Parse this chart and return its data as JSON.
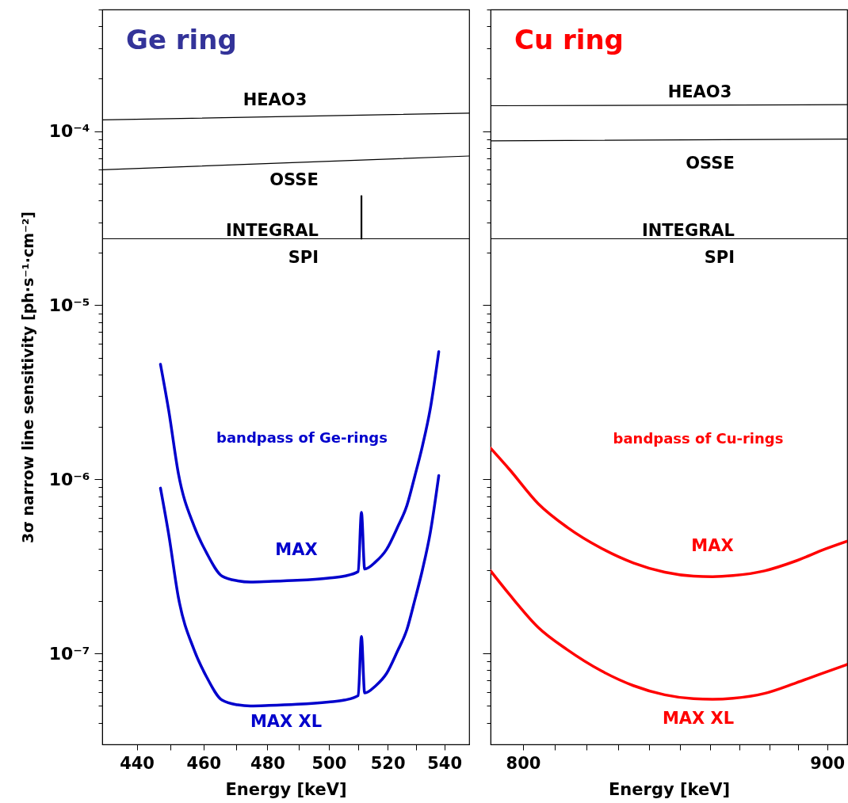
{
  "chart_data": [
    {
      "type": "line",
      "title": "Ge ring",
      "xlabel": "Energy [keV]",
      "ylabel": "3σ narrow line sensitivity [ph·s⁻¹·cm⁻²]",
      "log": "xy",
      "xlim": [
        430,
        549
      ],
      "ylim": [
        3e-08,
        0.0005
      ],
      "xticks": [
        440,
        {
          "value": 450,
          "label": null
        },
        460,
        {
          "value": 470,
          "label": null
        },
        480,
        {
          "value": 490,
          "label": null
        },
        500,
        {
          "value": 510,
          "label": null
        },
        520,
        {
          "value": 530,
          "label": null
        },
        540
      ],
      "yticks": [
        {
          "value": 4e-08,
          "label": null
        },
        {
          "value": 5e-08,
          "label": null
        },
        {
          "value": 6e-08,
          "label": null
        },
        {
          "value": 7e-08,
          "label": null
        },
        {
          "value": 8e-08,
          "label": null
        },
        {
          "value": 9e-08,
          "label": null
        },
        {
          "value": 1e-07,
          "label": "10⁻⁷"
        },
        {
          "value": 2e-07,
          "label": null
        },
        {
          "value": 3e-07,
          "label": null
        },
        {
          "value": 4e-07,
          "label": null
        },
        {
          "value": 5e-07,
          "label": null
        },
        {
          "value": 6e-07,
          "label": null
        },
        {
          "value": 7e-07,
          "label": null
        },
        {
          "value": 8e-07,
          "label": null
        },
        {
          "value": 9e-07,
          "label": null
        },
        {
          "value": 1e-06,
          "label": "10⁻⁶"
        },
        {
          "value": 2e-06,
          "label": null
        },
        {
          "value": 3e-06,
          "label": null
        },
        {
          "value": 4e-06,
          "label": null
        },
        {
          "value": 5e-06,
          "label": null
        },
        {
          "value": 6e-06,
          "label": null
        },
        {
          "value": 7e-06,
          "label": null
        },
        {
          "value": 8e-06,
          "label": null
        },
        {
          "value": 9e-06,
          "label": null
        },
        {
          "value": 1e-05,
          "label": "10⁻⁵"
        },
        {
          "value": 2e-05,
          "label": null
        },
        {
          "value": 3e-05,
          "label": null
        },
        {
          "value": 4e-05,
          "label": null
        },
        {
          "value": 5e-05,
          "label": null
        },
        {
          "value": 6e-05,
          "label": null
        },
        {
          "value": 7e-05,
          "label": null
        },
        {
          "value": 8e-05,
          "label": null
        },
        {
          "value": 9e-05,
          "label": null
        },
        {
          "value": 0.0001,
          "label": "10⁻⁴"
        },
        {
          "value": 0.0002,
          "label": null
        },
        {
          "value": 0.0003,
          "label": null
        },
        {
          "value": 0.0004,
          "label": null
        },
        {
          "value": 0.0005,
          "label": null
        }
      ],
      "annotations": [
        "bandpass of Ge-rings"
      ],
      "series": [
        {
          "name": "HEAO3",
          "color": "#000000",
          "x": [
            430,
            549
          ],
          "values": [
            0.000116,
            0.000127
          ]
        },
        {
          "name": "OSSE",
          "color": "#000000",
          "x": [
            430,
            549
          ],
          "values": [
            6e-05,
            7.2e-05
          ]
        },
        {
          "name": "INTEGRAL SPI",
          "color": "#000000",
          "x": [
            430,
            549
          ],
          "values": [
            2.41e-05,
            2.41e-05
          ]
        },
        {
          "color": "#000000",
          "x": [
            511,
            511
          ],
          "values": [
            2.41e-05,
            4.24e-05
          ]
        },
        {
          "name": "MAX",
          "color": "#0000cc",
          "x": [
            447.0,
            449.5,
            452.4,
            457.1,
            460.9,
            465.7,
            470.6,
            474.6,
            480.5,
            489.6,
            499.9,
            505.2,
            509.9,
            511.0,
            512.1,
            515.8,
            519.6,
            523.4,
            526.7,
            529.4,
            532.2,
            535.0,
            538.0
          ],
          "values": [
            4.58e-06,
            2.46e-06,
            1.07e-06,
            5.4e-07,
            3.79e-07,
            2.78e-07,
            2.61e-07,
            2.57e-07,
            2.59e-07,
            2.63e-07,
            2.71e-07,
            2.78e-07,
            2.95e-07,
            6.45e-07,
            3.05e-07,
            3.35e-07,
            3.95e-07,
            5.29e-07,
            7.07e-07,
            1.03e-06,
            1.56e-06,
            2.56e-06,
            5.41e-06
          ]
        },
        {
          "name": "MAX XL",
          "color": "#0000cc",
          "x": [
            447.0,
            449.5,
            452.4,
            457.1,
            460.9,
            465.7,
            470.6,
            474.6,
            480.5,
            489.6,
            499.9,
            505.2,
            509.9,
            511.0,
            512.1,
            515.8,
            519.6,
            523.4,
            526.7,
            529.4,
            532.2,
            535.0,
            538.0
          ],
          "values": [
            8.9e-07,
            4.77e-07,
            2.08e-07,
            1.05e-07,
            7.35e-08,
            5.39e-08,
            5.06e-08,
            4.99e-08,
            5.02e-08,
            5.1e-08,
            5.26e-08,
            5.39e-08,
            5.72e-08,
            1.25e-07,
            5.92e-08,
            6.5e-08,
            7.66e-08,
            1.03e-07,
            1.37e-07,
            2e-07,
            3.03e-07,
            4.97e-07,
            1.05e-06
          ]
        }
      ]
    },
    {
      "type": "line",
      "title": "Cu ring",
      "xlabel": "Energy [keV]",
      "log": "xy",
      "tick_labels": "x",
      "xlim": [
        790,
        907
      ],
      "ylim": [
        3e-08,
        0.0005
      ],
      "xticks": [
        800,
        {
          "value": 810,
          "label": null
        },
        {
          "value": 820,
          "label": null
        },
        {
          "value": 830,
          "label": null
        },
        {
          "value": 840,
          "label": null
        },
        {
          "value": 850,
          "label": null
        },
        {
          "value": 860,
          "label": null
        },
        {
          "value": 870,
          "label": null
        },
        {
          "value": 880,
          "label": null
        },
        {
          "value": 890,
          "label": null
        },
        900
      ],
      "yticks": [
        {
          "value": 4e-08,
          "label": null
        },
        {
          "value": 5e-08,
          "label": null
        },
        {
          "value": 6e-08,
          "label": null
        },
        {
          "value": 7e-08,
          "label": null
        },
        {
          "value": 8e-08,
          "label": null
        },
        {
          "value": 9e-08,
          "label": null
        },
        {
          "value": 1e-07,
          "label": null
        },
        {
          "value": 2e-07,
          "label": null
        },
        {
          "value": 3e-07,
          "label": null
        },
        {
          "value": 4e-07,
          "label": null
        },
        {
          "value": 5e-07,
          "label": null
        },
        {
          "value": 6e-07,
          "label": null
        },
        {
          "value": 7e-07,
          "label": null
        },
        {
          "value": 8e-07,
          "label": null
        },
        {
          "value": 9e-07,
          "label": null
        },
        {
          "value": 1e-06,
          "label": null
        },
        {
          "value": 2e-06,
          "label": null
        },
        {
          "value": 3e-06,
          "label": null
        },
        {
          "value": 4e-06,
          "label": null
        },
        {
          "value": 5e-06,
          "label": null
        },
        {
          "value": 6e-06,
          "label": null
        },
        {
          "value": 7e-06,
          "label": null
        },
        {
          "value": 8e-06,
          "label": null
        },
        {
          "value": 9e-06,
          "label": null
        },
        {
          "value": 1e-05,
          "label": null
        },
        {
          "value": 2e-05,
          "label": null
        },
        {
          "value": 3e-05,
          "label": null
        },
        {
          "value": 4e-05,
          "label": null
        },
        {
          "value": 5e-05,
          "label": null
        },
        {
          "value": 6e-05,
          "label": null
        },
        {
          "value": 7e-05,
          "label": null
        },
        {
          "value": 8e-05,
          "label": null
        },
        {
          "value": 9e-05,
          "label": null
        },
        {
          "value": 0.0001,
          "label": null
        },
        {
          "value": 0.0002,
          "label": null
        },
        {
          "value": 0.0003,
          "label": null
        },
        {
          "value": 0.0004,
          "label": null
        },
        {
          "value": 0.0005,
          "label": null
        }
      ],
      "annotations": [
        "bandpass of Cu-rings"
      ],
      "series": [
        {
          "name": "HEAO3",
          "color": "#000000",
          "x": [
            790,
            907
          ],
          "values": [
            0.00014,
            0.000142
          ]
        },
        {
          "name": "OSSE",
          "color": "#000000",
          "x": [
            790,
            907
          ],
          "values": [
            8.8e-05,
            9e-05
          ]
        },
        {
          "name": "INTEGRAL SPI",
          "color": "#000000",
          "x": [
            790,
            907
          ],
          "values": [
            2.41e-05,
            2.41e-05
          ]
        },
        {
          "name": "MAX",
          "color": "#ff0000",
          "x": [
            790,
            795.8,
            804.7,
            813.8,
            824.7,
            834.9,
            845.1,
            854.6,
            860.9,
            867.8,
            878.4,
            889.2,
            899.2,
            907
          ],
          "values": [
            1.51e-06,
            1.14e-06,
            7.25e-07,
            5.3e-07,
            4.01e-07,
            3.31e-07,
            2.93e-07,
            2.78e-07,
            2.76e-07,
            2.8e-07,
            2.98e-07,
            3.4e-07,
            3.97e-07,
            4.41e-07
          ]
        },
        {
          "name": "MAX XL",
          "color": "#ff0000",
          "x": [
            790,
            795.8,
            804.7,
            813.8,
            824.7,
            834.9,
            845.1,
            854.6,
            860.9,
            867.8,
            878.4,
            889.2,
            899.2,
            907
          ],
          "values": [
            2.98e-07,
            2.18e-07,
            1.41e-07,
            1.05e-07,
            7.92e-08,
            6.53e-08,
            5.78e-08,
            5.49e-08,
            5.45e-08,
            5.52e-08,
            5.89e-08,
            6.77e-08,
            7.78e-08,
            8.64e-08
          ]
        }
      ]
    }
  ]
}
